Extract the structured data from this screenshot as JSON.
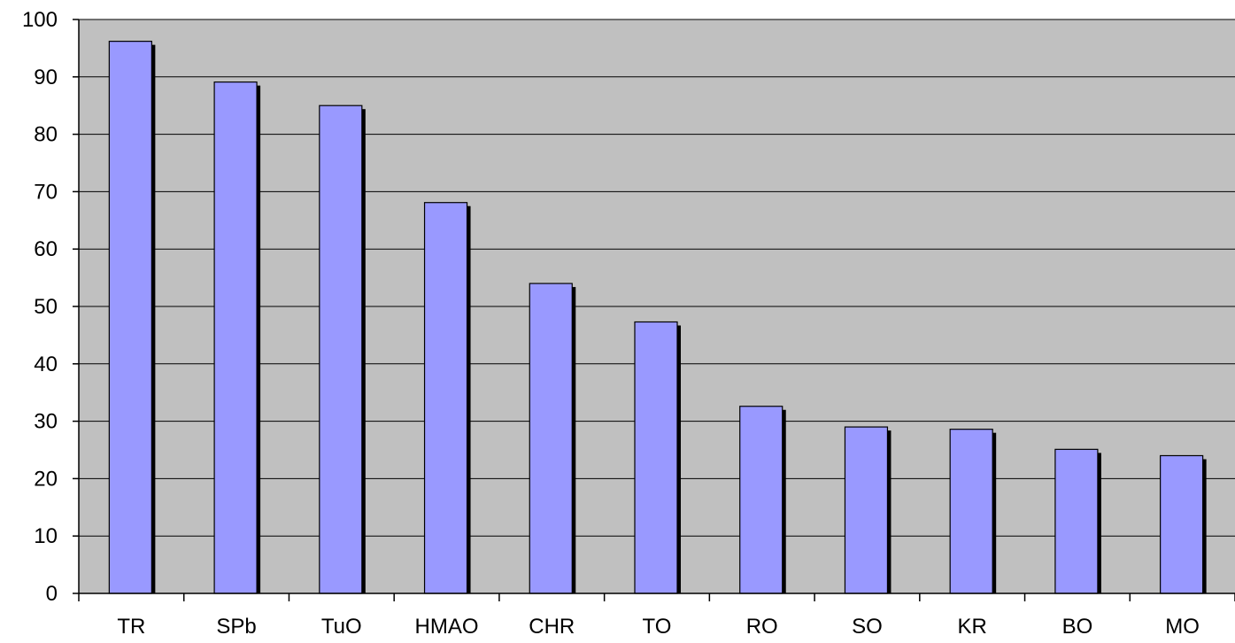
{
  "chart_data": {
    "type": "bar",
    "categories": [
      "TR",
      "SPb",
      "TuO",
      "HMAO",
      "CHR",
      "TO",
      "RO",
      "SO",
      "KR",
      "BO",
      "MO"
    ],
    "series": [
      {
        "values": [
          96.2,
          89.1,
          85.0,
          68.1,
          54.0,
          47.3,
          32.6,
          29.0,
          28.6,
          25.1,
          24.0
        ]
      }
    ],
    "title": "",
    "xlabel": "",
    "ylabel": "",
    "ylim": [
      0,
      100
    ],
    "y_ticks": [
      0,
      10,
      20,
      30,
      40,
      50,
      60,
      70,
      80,
      90,
      100
    ],
    "grid": true,
    "legend": "none",
    "colors": {
      "bar_fill": "#9999ff",
      "bar_shadow": "#000000",
      "plot_background": "#c0c0c0",
      "gridline": "#000000"
    }
  }
}
